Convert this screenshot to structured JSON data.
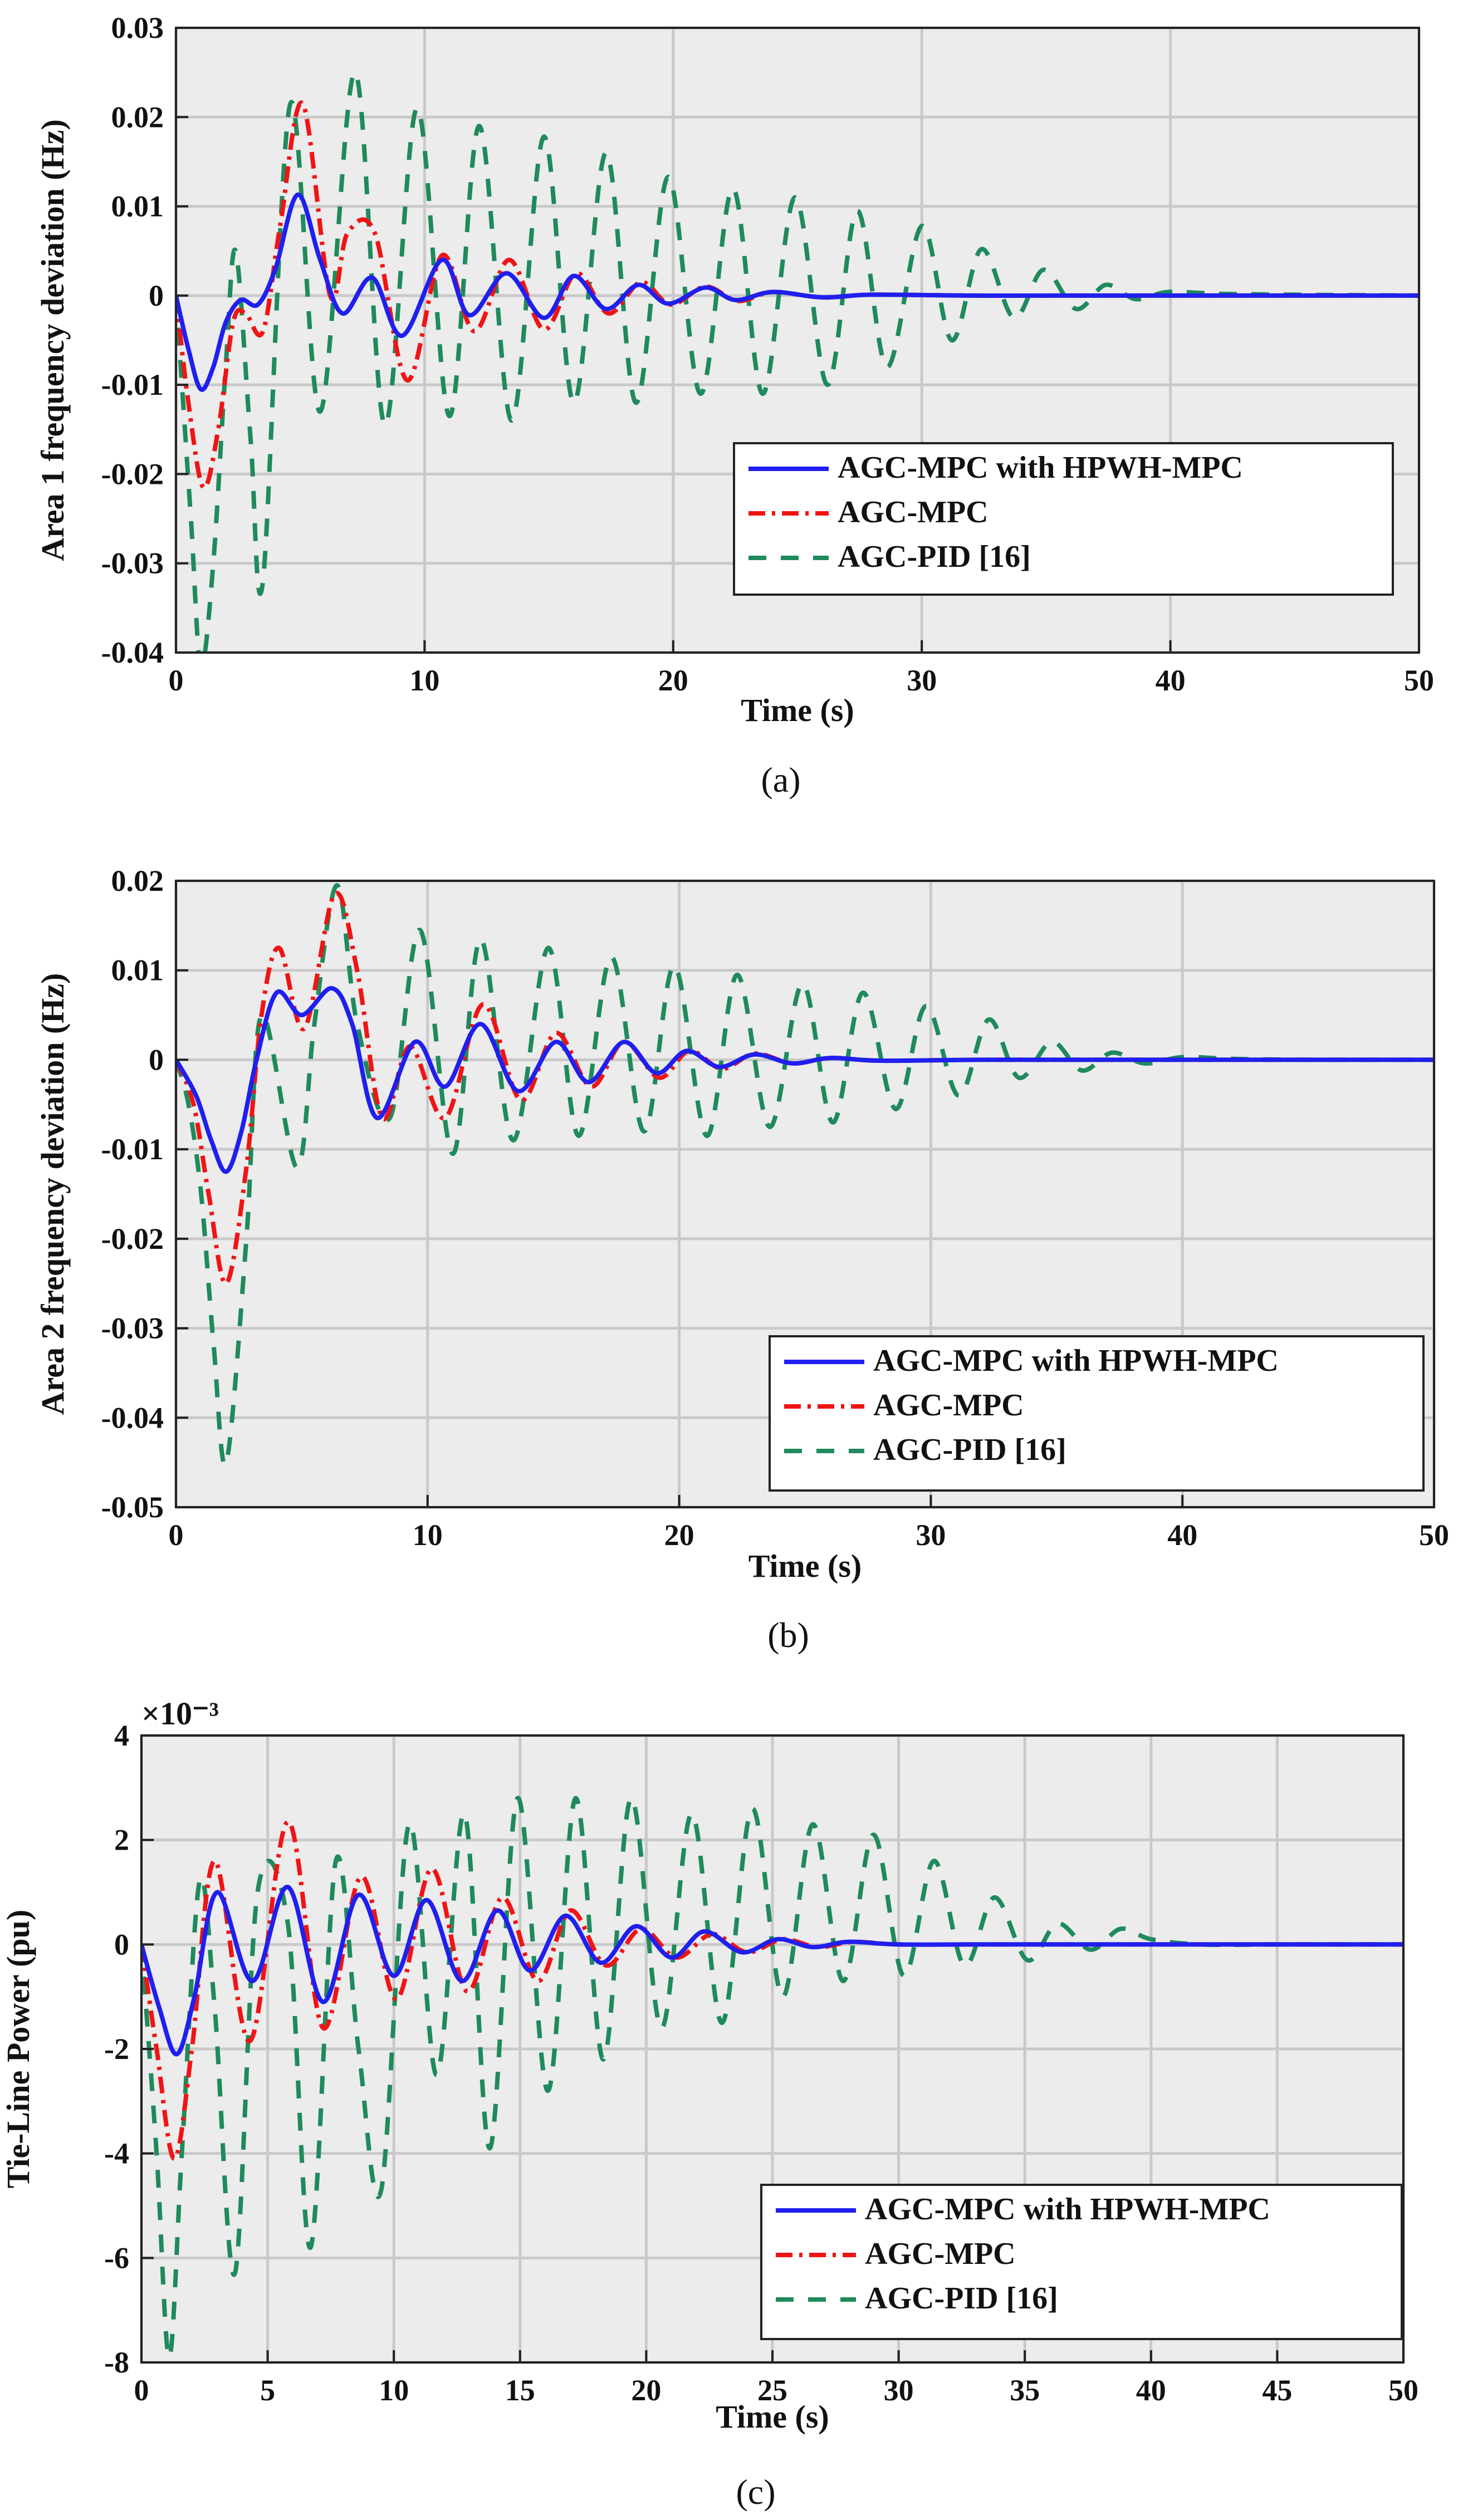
{
  "colors": {
    "blue": "#1f1fef",
    "red": "#f01414",
    "green": "#1f8a5c",
    "background": "#ececec",
    "grid": "#c9c9c9"
  },
  "legend_entries": [
    "AGC-MPC with HPWH-MPC",
    "AGC-MPC",
    "AGC-PID [16]"
  ],
  "chart_data": [
    {
      "id": "a",
      "type": "line",
      "caption": "(a)",
      "xlabel": "Time (s)",
      "ylabel": "Area 1 frequency deviation (Hz)",
      "xlim": [
        0,
        50
      ],
      "ylim": [
        -0.04,
        0.03
      ],
      "xticks": [
        0,
        10,
        20,
        30,
        40,
        50
      ],
      "yticks": [
        -0.04,
        -0.03,
        -0.02,
        -0.01,
        0,
        0.01,
        0.02,
        0.03
      ],
      "xtick_labels": [
        "0",
        "10",
        "20",
        "30",
        "40",
        "50"
      ],
      "ytick_labels": [
        "-0.04",
        "-0.03",
        "-0.02",
        "-0.01",
        "0",
        "0.01",
        "0.02",
        "0.03"
      ],
      "grid": true,
      "legend_position": "lower-right",
      "series": [
        {
          "name": "AGC-MPC with HPWH-MPC",
          "style": "solid",
          "color": "#1f1fef",
          "x": [
            0,
            0.5,
            1.0,
            1.5,
            2.0,
            2.6,
            3.3,
            4.0,
            4.9,
            5.8,
            6.7,
            7.9,
            9.1,
            10.7,
            11.8,
            13.3,
            14.8,
            16.0,
            17.3,
            18.6,
            19.8,
            21.3,
            22.5,
            24.0,
            26.0,
            28.0,
            32.0,
            38.0,
            50.0
          ],
          "y": [
            0,
            -0.006,
            -0.0105,
            -0.008,
            -0.003,
            -0.0005,
            -0.001,
            0.003,
            0.0113,
            0.004,
            -0.002,
            0.002,
            -0.0045,
            0.004,
            -0.0022,
            0.0025,
            -0.0025,
            0.0022,
            -0.0015,
            0.0012,
            -0.0009,
            0.0009,
            -0.0005,
            0.0004,
            -0.0002,
            0.0001,
            0,
            0,
            0
          ]
        },
        {
          "name": "AGC-MPC",
          "style": "dashdot",
          "color": "#f01414",
          "x": [
            0,
            0.5,
            1.1,
            1.7,
            2.3,
            2.8,
            3.5,
            4.2,
            5.1,
            6.2,
            6.9,
            8.0,
            9.3,
            10.7,
            12.0,
            13.4,
            14.8,
            16.1,
            17.4,
            18.7,
            19.9,
            21.3,
            22.6,
            24.0,
            26.0,
            28.0,
            32.0,
            38.0,
            50.0
          ],
          "y": [
            0,
            -0.012,
            -0.0215,
            -0.015,
            -0.003,
            -0.002,
            -0.004,
            0.008,
            0.0215,
            0.0,
            0.007,
            0.007,
            -0.0095,
            0.0045,
            -0.004,
            0.004,
            -0.0038,
            0.0025,
            -0.002,
            0.0015,
            -0.001,
            0.001,
            -0.0006,
            0.0004,
            -0.0002,
            0.0001,
            0,
            0,
            0
          ]
        },
        {
          "name": "AGC-PID [16]",
          "style": "dashed",
          "color": "#1f8a5c",
          "x": [
            0,
            0.6,
            1.0,
            1.5,
            2.0,
            2.4,
            3.0,
            3.5,
            4.6,
            5.8,
            7.2,
            8.4,
            9.7,
            11.0,
            12.2,
            13.5,
            14.8,
            16.0,
            17.3,
            18.5,
            19.8,
            21.1,
            22.4,
            23.6,
            24.9,
            26.2,
            27.4,
            28.6,
            30.0,
            31.2,
            32.4,
            33.7,
            34.9,
            36.2,
            37.4,
            38.6,
            39.9,
            42.0,
            45.0,
            50.0
          ],
          "y": [
            0,
            -0.025,
            -0.0415,
            -0.03,
            -0.008,
            0.005,
            -0.016,
            -0.032,
            0.0215,
            -0.013,
            0.025,
            -0.0145,
            0.021,
            -0.0135,
            0.019,
            -0.014,
            0.0178,
            -0.012,
            0.016,
            -0.012,
            0.0133,
            -0.011,
            0.012,
            -0.011,
            0.011,
            -0.01,
            0.0095,
            -0.008,
            0.0078,
            -0.005,
            0.0052,
            -0.0025,
            0.0029,
            -0.0015,
            0.0012,
            -0.0004,
            0.0004,
            0.0002,
            0.0001,
            0
          ]
        }
      ]
    },
    {
      "id": "b",
      "type": "line",
      "caption": "(b)",
      "xlabel": "Time (s)",
      "ylabel": "Area 2 frequency deviation (Hz)",
      "xlim": [
        0,
        50
      ],
      "ylim": [
        -0.05,
        0.02
      ],
      "xticks": [
        0,
        10,
        20,
        30,
        40,
        50
      ],
      "yticks": [
        -0.05,
        -0.04,
        -0.03,
        -0.02,
        -0.01,
        0,
        0.01,
        0.02
      ],
      "xtick_labels": [
        "0",
        "10",
        "20",
        "30",
        "40",
        "50"
      ],
      "ytick_labels": [
        "-0.05",
        "-0.04",
        "-0.03",
        "-0.02",
        "-0.01",
        "0",
        "0.01",
        "0.02"
      ],
      "grid": true,
      "legend_position": "lower-right",
      "series": [
        {
          "name": "AGC-MPC with HPWH-MPC",
          "style": "solid",
          "color": "#1f1fef",
          "x": [
            0,
            0.8,
            1.4,
            2.0,
            2.6,
            3.2,
            4.0,
            5.0,
            6.2,
            7.0,
            8.0,
            9.5,
            10.7,
            12.1,
            13.6,
            15.1,
            16.4,
            17.8,
            19.1,
            20.3,
            21.6,
            23.0,
            24.5,
            26.0,
            28.0,
            32.0,
            38.0,
            50.0
          ],
          "y": [
            0,
            -0.004,
            -0.009,
            -0.0125,
            -0.008,
            0.0,
            0.0075,
            0.005,
            0.008,
            0.004,
            -0.0065,
            0.002,
            -0.003,
            0.004,
            -0.0035,
            0.002,
            -0.0025,
            0.002,
            -0.0015,
            0.001,
            -0.0008,
            0.0006,
            -0.0004,
            0.0002,
            -0.0001,
            0,
            0,
            0
          ]
        },
        {
          "name": "AGC-MPC",
          "style": "dashdot",
          "color": "#f01414",
          "x": [
            0,
            0.7,
            1.3,
            2.0,
            2.8,
            3.4,
            4.1,
            5.1,
            6.3,
            7.2,
            8.2,
            9.3,
            10.7,
            12.2,
            13.7,
            15.1,
            16.5,
            17.8,
            19.2,
            20.4,
            21.7,
            23.0,
            24.5,
            26.0,
            28.0,
            32.0,
            38.0,
            50.0
          ],
          "y": [
            0,
            -0.005,
            -0.015,
            -0.025,
            -0.012,
            0.005,
            0.0125,
            0.0035,
            0.0185,
            0.01,
            -0.0065,
            0.0015,
            -0.0065,
            0.0062,
            -0.0045,
            0.003,
            -0.003,
            0.002,
            -0.002,
            0.001,
            -0.001,
            0.0007,
            -0.0004,
            0.0002,
            -0.0001,
            0,
            0,
            0
          ]
        },
        {
          "name": "AGC-PID [16]",
          "style": "dashed",
          "color": "#1f8a5c",
          "x": [
            0,
            0.5,
            1.0,
            1.5,
            2.0,
            2.8,
            3.4,
            4.8,
            5.5,
            6.4,
            7.2,
            8.5,
            9.7,
            11.0,
            12.1,
            13.4,
            14.8,
            16.0,
            17.3,
            18.6,
            19.8,
            21.1,
            22.3,
            23.6,
            24.9,
            26.1,
            27.3,
            28.6,
            29.8,
            31.1,
            32.3,
            33.5,
            34.8,
            36.0,
            37.2,
            38.5,
            40.0,
            42.0,
            45.0,
            50.0
          ],
          "y": [
            0,
            -0.005,
            -0.015,
            -0.032,
            -0.045,
            -0.02,
            0.005,
            -0.012,
            0.004,
            0.0195,
            0.004,
            -0.0065,
            0.0145,
            -0.0105,
            0.0135,
            -0.009,
            0.0125,
            -0.0085,
            0.0115,
            -0.008,
            0.0105,
            -0.0085,
            0.0095,
            -0.0075,
            0.0085,
            -0.007,
            0.0075,
            -0.0055,
            0.006,
            -0.004,
            0.0045,
            -0.002,
            0.002,
            -0.0012,
            0.0008,
            -0.0004,
            0.0003,
            0.0001,
            0,
            0
          ]
        }
      ]
    },
    {
      "id": "c",
      "type": "line",
      "caption": "(c)",
      "xlabel": "Time (s)",
      "ylabel": "Tie-Line Power (pu)",
      "axis_multiplier": "×10⁻³",
      "xlim": [
        0,
        50
      ],
      "ylim": [
        -8,
        4
      ],
      "xticks": [
        0,
        5,
        10,
        15,
        20,
        25,
        30,
        35,
        40,
        45,
        50
      ],
      "yticks": [
        -8,
        -6,
        -4,
        -2,
        0,
        2,
        4
      ],
      "xtick_labels": [
        "0",
        "5",
        "10",
        "15",
        "20",
        "25",
        "30",
        "35",
        "40",
        "45",
        "50"
      ],
      "ytick_labels": [
        "-8",
        "-6",
        "-4",
        "-2",
        "0",
        "2",
        "4"
      ],
      "grid": true,
      "legend_position": "lower-right",
      "series": [
        {
          "name": "AGC-MPC with HPWH-MPC",
          "style": "solid",
          "color": "#1f1fef",
          "x": [
            0,
            0.7,
            1.4,
            2.1,
            3.0,
            4.4,
            5.8,
            7.2,
            8.6,
            10.0,
            11.3,
            12.7,
            14.1,
            15.4,
            16.8,
            18.2,
            19.6,
            21.0,
            22.3,
            23.8,
            25.2,
            26.6,
            28.0,
            30.0,
            33.0,
            38.0,
            50.0
          ],
          "y": [
            0,
            -1.2,
            -2.1,
            -1.0,
            1.0,
            -0.7,
            1.1,
            -1.1,
            0.95,
            -0.6,
            0.85,
            -0.7,
            0.65,
            -0.5,
            0.55,
            -0.35,
            0.35,
            -0.25,
            0.25,
            -0.15,
            0.1,
            -0.05,
            0.05,
            0,
            0,
            0,
            0
          ]
        },
        {
          "name": "AGC-MPC",
          "style": "dashdot",
          "color": "#f01414",
          "x": [
            0,
            0.6,
            1.3,
            2.0,
            2.9,
            4.3,
            5.8,
            7.2,
            8.7,
            10.1,
            11.5,
            12.9,
            14.3,
            15.7,
            17.0,
            18.4,
            19.8,
            21.2,
            22.6,
            24.0,
            25.4,
            26.8,
            28.2,
            30.0,
            33.0,
            38.0,
            50.0
          ],
          "y": [
            0,
            -2.0,
            -4.1,
            -2.0,
            1.6,
            -1.85,
            2.35,
            -1.6,
            1.3,
            -1.05,
            1.45,
            -0.9,
            0.9,
            -0.7,
            0.65,
            -0.4,
            0.3,
            -0.25,
            0.2,
            -0.15,
            0.1,
            -0.05,
            0.05,
            0,
            0,
            0,
            0
          ]
        },
        {
          "name": "AGC-PID [16]",
          "style": "dashed",
          "color": "#1f8a5c",
          "x": [
            0,
            0.6,
            1.1,
            1.6,
            2.3,
            2.9,
            3.7,
            4.6,
            5.8,
            6.7,
            7.7,
            8.6,
            9.5,
            10.6,
            11.7,
            12.8,
            13.8,
            14.9,
            16.1,
            17.2,
            18.3,
            19.4,
            20.6,
            21.8,
            23.0,
            24.2,
            25.4,
            26.6,
            27.8,
            29.0,
            30.2,
            31.4,
            32.6,
            33.8,
            35.1,
            36.3,
            37.6,
            38.8,
            40.0,
            42.0,
            45.0,
            50.0
          ],
          "y": [
            0,
            -4.0,
            -7.9,
            -4.0,
            1.2,
            -1.2,
            -6.3,
            1.0,
            0.4,
            -5.8,
            1.6,
            -2.0,
            -4.7,
            2.3,
            -2.5,
            2.5,
            -3.9,
            2.8,
            -2.8,
            2.8,
            -2.2,
            2.8,
            -1.6,
            2.5,
            -1.5,
            2.6,
            -1.0,
            2.3,
            -0.7,
            2.1,
            -0.6,
            1.6,
            -0.4,
            0.9,
            -0.3,
            0.4,
            -0.1,
            0.3,
            0.1,
            0,
            0,
            0
          ]
        }
      ]
    }
  ]
}
